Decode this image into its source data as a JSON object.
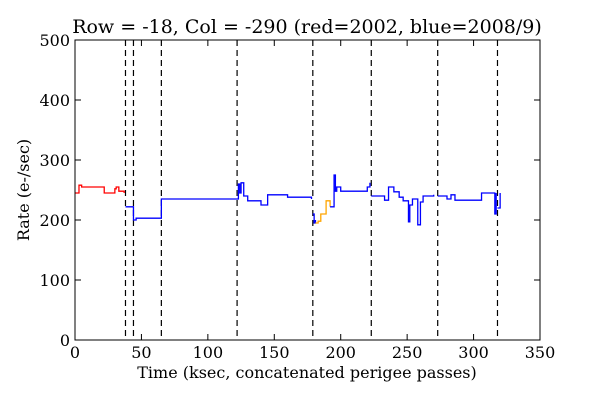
{
  "chart_data": {
    "type": "line",
    "title": "Row = -18, Col = -290 (red=2002, blue=2008/9)",
    "xlabel": "Time (ksec, concatenated perigee passes)",
    "ylabel": "Rate (e-/sec)",
    "xlim": [
      0,
      350
    ],
    "ylim": [
      0,
      500
    ],
    "xticks": [
      0,
      50,
      100,
      150,
      200,
      250,
      300,
      350
    ],
    "yticks": [
      0,
      100,
      200,
      300,
      400,
      500
    ],
    "grid": false,
    "colors": {
      "red": "#ff0000",
      "blue": "#0000ff",
      "orange": "#ffa500",
      "boundary": "#000000"
    },
    "boundaries": [
      38,
      44,
      65,
      122,
      179,
      223,
      273,
      318
    ],
    "series": [
      {
        "color": "red",
        "x": [
          0,
          3,
          5,
          22,
          30,
          31,
          33,
          37
        ],
        "y": [
          245,
          258,
          255,
          245,
          252,
          255,
          248,
          245
        ]
      },
      {
        "color": "blue",
        "x": [
          38,
          44,
          46,
          65,
          122,
          123,
          124,
          125,
          127,
          130,
          140,
          145,
          160,
          178
        ],
        "y": [
          222,
          200,
          203,
          235,
          235,
          260,
          245,
          262,
          240,
          232,
          225,
          242,
          238,
          235
        ]
      },
      {
        "color": "blue",
        "x": [
          179,
          180,
          181
        ],
        "y": [
          210,
          195,
          200
        ]
      },
      {
        "color": "orange",
        "x": [
          181,
          183,
          185,
          189,
          192
        ],
        "y": [
          195,
          198,
          210,
          232,
          222
        ]
      },
      {
        "color": "blue",
        "x": [
          192,
          195,
          196,
          197,
          200,
          210,
          220,
          222
        ],
        "y": [
          222,
          275,
          248,
          255,
          248,
          248,
          255,
          262
        ]
      },
      {
        "color": "blue",
        "x": [
          223,
          230,
          233,
          236,
          240,
          244,
          247,
          251,
          252,
          254,
          257,
          258,
          260,
          262,
          265,
          270
        ],
        "y": [
          240,
          240,
          233,
          255,
          247,
          238,
          232,
          197,
          225,
          235,
          235,
          192,
          230,
          240,
          240,
          242
        ]
      },
      {
        "color": "blue",
        "x": [
          273,
          280,
          283,
          286,
          291,
          306,
          316,
          317
        ],
        "y": [
          240,
          235,
          242,
          233,
          233,
          245,
          210,
          245
        ]
      },
      {
        "color": "blue",
        "x": [
          318,
          320
        ],
        "y": [
          220,
          245
        ]
      }
    ]
  }
}
